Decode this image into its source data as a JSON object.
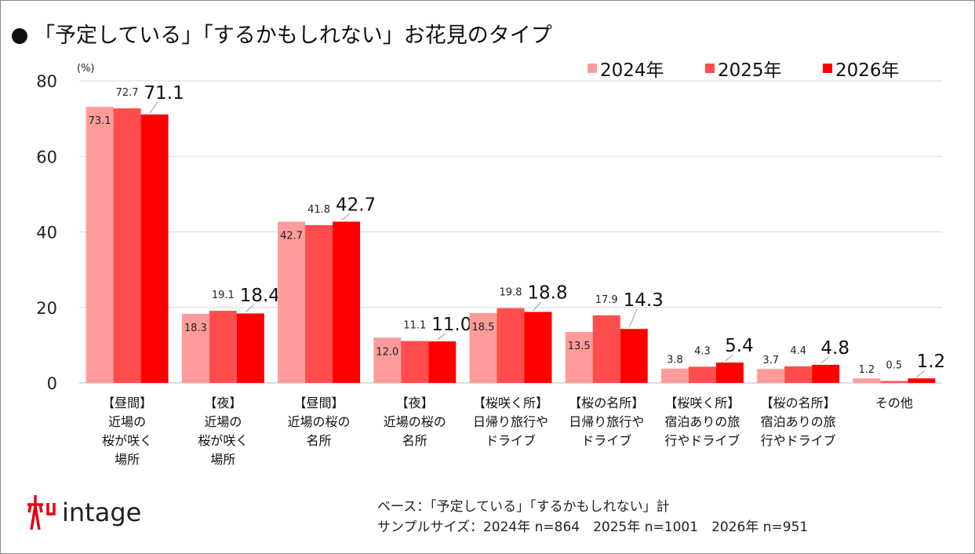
{
  "title": "「予定している」「するかもしれない」お花見のタイプ",
  "footer": {
    "base": "ベース：「予定している」「するかもしれない」計",
    "sample": "サンプルサイズ：2024年 n=864　2025年 n=1001　2026年 n=951"
  },
  "logo": {
    "text": "intage"
  },
  "colors": {
    "2024": "#FF9B9B",
    "2025": "#FF4D4D",
    "2026": "#FF0000"
  },
  "chart_data": {
    "type": "bar",
    "ylabel": "(%)",
    "ylim": [
      0,
      80
    ],
    "yticks": [
      0,
      20,
      40,
      60,
      80
    ],
    "grid": true,
    "legend": "top-right",
    "categories": [
      "【昼間】\n近場の\n桜が咲く\n場所",
      "【夜】\n近場の\n桜が咲く\n場所",
      "【昼間】\n近場の桜の\n名所",
      "【夜】\n近場の桜の\n名所",
      "【桜咲く所】\n日帰り旅行や\nドライブ",
      "【桜の名所】\n日帰り旅行や\nドライブ",
      "【桜咲く所】\n宿泊ありの旅\n行やドライブ",
      "【桜の名所】\n宿泊ありの旅\n行やドライブ",
      "その他"
    ],
    "series": [
      {
        "name": "2024年",
        "values": [
          73.1,
          18.3,
          42.7,
          12.0,
          18.5,
          13.5,
          3.8,
          3.7,
          1.2
        ]
      },
      {
        "name": "2025年",
        "values": [
          72.7,
          19.1,
          41.8,
          11.1,
          19.8,
          17.9,
          4.3,
          4.4,
          0.5
        ]
      },
      {
        "name": "2026年",
        "values": [
          71.1,
          18.4,
          42.7,
          11.0,
          18.8,
          14.3,
          5.4,
          4.8,
          1.2
        ]
      }
    ]
  }
}
